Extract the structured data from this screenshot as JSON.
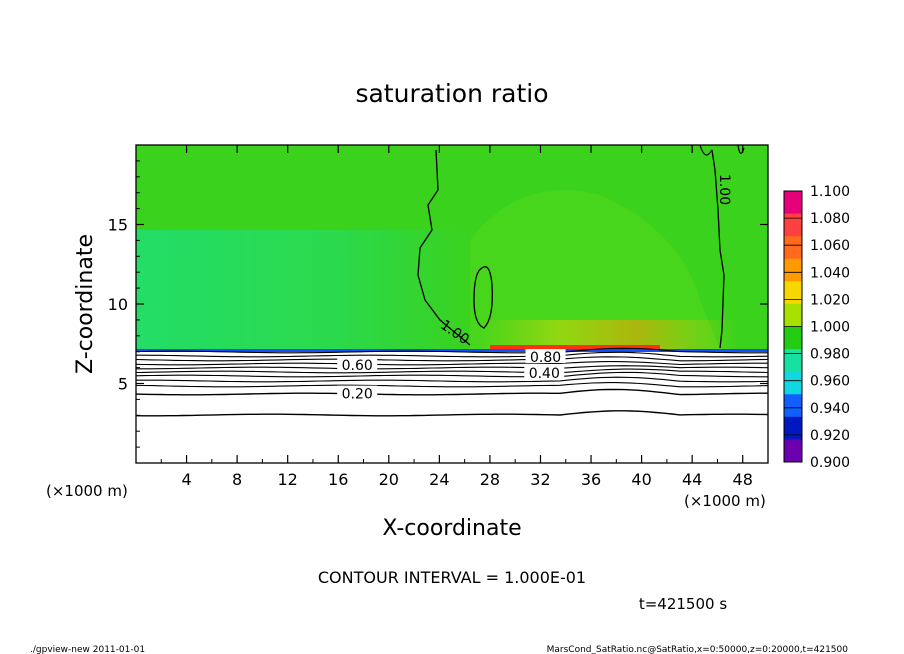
{
  "chart_data": {
    "type": "heatmap",
    "title": "saturation ratio",
    "xlabel": "X-coordinate",
    "ylabel": "Z-coordinate",
    "x_unit_left": "(×1000 m)",
    "x_unit_right": "(×1000 m)",
    "xlim": [
      0,
      50
    ],
    "ylim": [
      0,
      20
    ],
    "xticks": [
      4,
      8,
      12,
      16,
      20,
      24,
      28,
      32,
      36,
      40,
      44,
      48
    ],
    "xtick_labels": [
      "4",
      "8",
      "12",
      "16",
      "20",
      "24",
      "28",
      "32",
      "36",
      "40",
      "44",
      "48"
    ],
    "yticks": [
      5,
      10,
      15
    ],
    "ytick_labels": [
      "5",
      "10",
      "15"
    ],
    "colorbar": {
      "min": 0.9,
      "max": 1.1,
      "step": 0.02,
      "labels": [
        "1.100",
        "1.080",
        "1.060",
        "1.040",
        "1.020",
        "1.000",
        "0.980",
        "0.960",
        "0.940",
        "0.920",
        "0.900"
      ],
      "colors": [
        "#e8007a",
        "#ff4040",
        "#ff6a1c",
        "#ff9a00",
        "#f6d800",
        "#a8e000",
        "#22cc10",
        "#18e0a0",
        "#10d8e0",
        "#1060ff",
        "#0018c0",
        "#6a00b0"
      ]
    },
    "field_colors": {
      "upper": "#3ad21c",
      "mid": "#4ed71c",
      "low_left": "#1de07a",
      "surface_peak": "#ff3010",
      "subsaturated": "#ffffff"
    },
    "contour_labels": [
      {
        "text": "1.00",
        "x": 46.5,
        "z": 17.2,
        "angle": 90
      },
      {
        "text": "1.00",
        "x": 25.2,
        "z": 8.2,
        "angle": 35
      },
      {
        "text": "0.80",
        "x": 32.4,
        "z": 6.6,
        "angle": 0
      },
      {
        "text": "0.60",
        "x": 17.5,
        "z": 6.1,
        "angle": 0
      },
      {
        "text": "0.40",
        "x": 32.3,
        "z": 5.6,
        "angle": 0
      },
      {
        "text": "0.20",
        "x": 17.5,
        "z": 4.3,
        "angle": 0
      }
    ],
    "contour_interval": "CONTOUR INTERVAL = 1.000E-01",
    "time_label": "t=421500 s"
  },
  "footer": {
    "left": "./gpview-new   2011-01-01",
    "right": "MarsCond_SatRatio.nc@SatRatio,x=0:50000,z=0:20000,t=421500"
  }
}
